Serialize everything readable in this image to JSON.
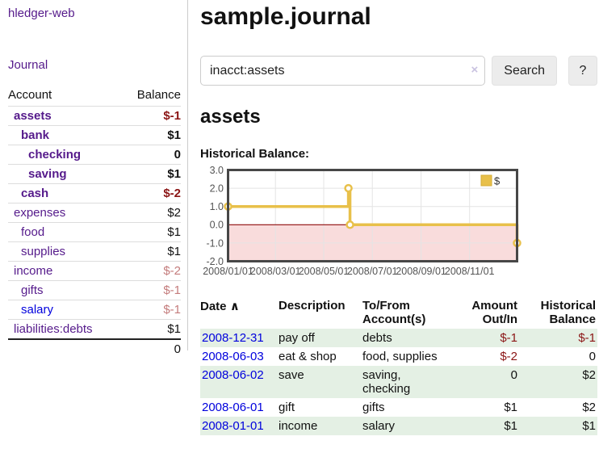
{
  "app": {
    "title": "hledger-web"
  },
  "sidebar": {
    "journal_link": "Journal",
    "header": {
      "account": "Account",
      "balance": "Balance"
    },
    "accounts": [
      {
        "name": "assets",
        "balance": "$-1"
      },
      {
        "name": "bank",
        "balance": "$1"
      },
      {
        "name": "checking",
        "balance": "0"
      },
      {
        "name": "saving",
        "balance": "$1"
      },
      {
        "name": "cash",
        "balance": "$-2"
      },
      {
        "name": "expenses",
        "balance": "$2"
      },
      {
        "name": "food",
        "balance": "$1"
      },
      {
        "name": "supplies",
        "balance": "$1"
      },
      {
        "name": "income",
        "balance": "$-2"
      },
      {
        "name": "gifts",
        "balance": "$-1"
      },
      {
        "name": "salary",
        "balance": "$-1"
      },
      {
        "name": "liabilities:debts",
        "balance": "$1"
      }
    ],
    "total": "0"
  },
  "main": {
    "title": "sample.journal",
    "search": {
      "value": "inacct:assets",
      "clear_icon": "×",
      "button": "Search",
      "help": "?"
    },
    "account_heading": "assets",
    "chart_label": "Historical Balance:"
  },
  "chart_data": {
    "type": "line",
    "title": "Historical Balance",
    "steps": true,
    "series": [
      {
        "name": "$",
        "color": "#e8c04a",
        "points": [
          [
            "2008-01-01",
            1
          ],
          [
            "2008-06-01",
            2
          ],
          [
            "2008-06-03",
            0
          ],
          [
            "2008-12-31",
            -1
          ]
        ]
      }
    ],
    "x_range": [
      "2008-01-01",
      "2008-12-31"
    ],
    "ylim": [
      -2,
      3
    ],
    "y_ticks": [
      "3.0",
      "2.0",
      "1.0",
      "0.0",
      "-1.0",
      "-2.0"
    ],
    "x_ticks": [
      "2008/01/01",
      "2008/03/01",
      "2008/05/01",
      "2008/07/01",
      "2008/09/01",
      "2008/11/01"
    ],
    "legend": "$",
    "legend_position": "top-right",
    "grid": true,
    "negative_region_color": "#f9dcdc",
    "zero_line_color": "#8f0b0b"
  },
  "register": {
    "sort_icon": "∧",
    "headers": {
      "date": "Date",
      "description": "Description",
      "accounts": "To/From Account(s)",
      "amount": "Amount Out/In",
      "balance": "Historical Balance"
    },
    "rows": [
      {
        "date": "2008-12-31",
        "description": "pay off",
        "accounts": "debts",
        "amount": "$-1",
        "balance": "$-1"
      },
      {
        "date": "2008-06-03",
        "description": "eat & shop",
        "accounts": "food, supplies",
        "amount": "$-2",
        "balance": "0"
      },
      {
        "date": "2008-06-02",
        "description": "save",
        "accounts": "saving, checking",
        "amount": "0",
        "balance": "$2"
      },
      {
        "date": "2008-06-01",
        "description": "gift",
        "accounts": "gifts",
        "amount": "$1",
        "balance": "$2"
      },
      {
        "date": "2008-01-01",
        "description": "income",
        "accounts": "salary",
        "amount": "$1",
        "balance": "$1"
      }
    ]
  }
}
